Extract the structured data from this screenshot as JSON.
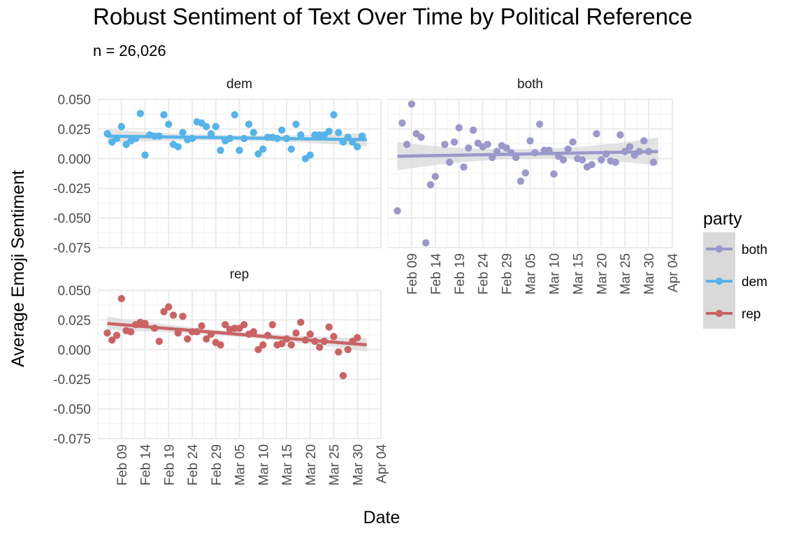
{
  "chart_data": {
    "type": "scatter",
    "title": "Robust Sentiment of Text Over Time by Political Reference",
    "subtitle": "n = 26,026",
    "xlabel": "Date",
    "ylabel": "Average Emoji Sentiment",
    "xlim": [
      "2024-02-04",
      "2024-04-04"
    ],
    "ylim": [
      -0.075,
      0.05
    ],
    "x_ticks": [
      "Feb 09",
      "Feb 14",
      "Feb 19",
      "Feb 24",
      "Feb 29",
      "Mar 05",
      "Mar 10",
      "Mar 15",
      "Mar 20",
      "Mar 25",
      "Mar 30",
      "Apr 04"
    ],
    "x_tick_dates": [
      "2024-02-09",
      "2024-02-14",
      "2024-02-19",
      "2024-02-24",
      "2024-02-29",
      "2024-03-05",
      "2024-03-10",
      "2024-03-15",
      "2024-03-20",
      "2024-03-25",
      "2024-03-30",
      "2024-04-04"
    ],
    "y_ticks": [
      "0.050",
      "0.025",
      "0.000",
      "-0.025",
      "-0.050",
      "-0.075"
    ],
    "y_tick_values": [
      0.05,
      0.025,
      0,
      -0.025,
      -0.05,
      -0.075
    ],
    "grid": true,
    "trend": "linear fit with confidence band",
    "legend": {
      "title": "party",
      "placement": "right",
      "entries": [
        "both",
        "dem",
        "rep"
      ]
    },
    "colors": {
      "both": "#9b98cb",
      "dem": "#56b4e9",
      "rep": "#c96464",
      "band": "#d9d9d9",
      "grid": "#ebebeb"
    },
    "panels": [
      {
        "name": "dem",
        "fit": {
          "start": [
            "2024-02-06",
            0.019
          ],
          "end": [
            "2024-04-01",
            0.016
          ]
        },
        "points": [
          [
            "2024-02-06",
            0.021
          ],
          [
            "2024-02-07",
            0.014
          ],
          [
            "2024-02-08",
            0.017
          ],
          [
            "2024-02-09",
            0.027
          ],
          [
            "2024-02-10",
            0.012
          ],
          [
            "2024-02-11",
            0.015
          ],
          [
            "2024-02-12",
            0.017
          ],
          [
            "2024-02-13",
            0.038
          ],
          [
            "2024-02-14",
            0.003
          ],
          [
            "2024-02-15",
            0.02
          ],
          [
            "2024-02-16",
            0.019
          ],
          [
            "2024-02-17",
            0.019
          ],
          [
            "2024-02-18",
            0.037
          ],
          [
            "2024-02-19",
            0.029
          ],
          [
            "2024-02-20",
            0.012
          ],
          [
            "2024-02-21",
            0.01
          ],
          [
            "2024-02-22",
            0.022
          ],
          [
            "2024-02-23",
            0.016
          ],
          [
            "2024-02-24",
            0.017
          ],
          [
            "2024-02-25",
            0.031
          ],
          [
            "2024-02-26",
            0.03
          ],
          [
            "2024-02-27",
            0.027
          ],
          [
            "2024-02-28",
            0.021
          ],
          [
            "2024-02-29",
            0.027
          ],
          [
            "2024-03-01",
            0.007
          ],
          [
            "2024-03-02",
            0.015
          ],
          [
            "2024-03-03",
            0.017
          ],
          [
            "2024-03-04",
            0.037
          ],
          [
            "2024-03-05",
            0.007
          ],
          [
            "2024-03-06",
            0.017
          ],
          [
            "2024-03-07",
            0.029
          ],
          [
            "2024-03-08",
            0.022
          ],
          [
            "2024-03-09",
            0.004
          ],
          [
            "2024-03-10",
            0.008
          ],
          [
            "2024-03-11",
            0.018
          ],
          [
            "2024-03-12",
            0.018
          ],
          [
            "2024-03-13",
            0.017
          ],
          [
            "2024-03-14",
            0.024
          ],
          [
            "2024-03-15",
            0.017
          ],
          [
            "2024-03-16",
            0.008
          ],
          [
            "2024-03-17",
            0.029
          ],
          [
            "2024-03-18",
            0.02
          ],
          [
            "2024-03-19",
            0.0
          ],
          [
            "2024-03-20",
            0.003
          ],
          [
            "2024-03-21",
            0.02
          ],
          [
            "2024-03-22",
            0.02
          ],
          [
            "2024-03-23",
            0.02
          ],
          [
            "2024-03-24",
            0.023
          ],
          [
            "2024-03-25",
            0.037
          ],
          [
            "2024-03-26",
            0.022
          ],
          [
            "2024-03-27",
            0.014
          ],
          [
            "2024-03-28",
            0.018
          ],
          [
            "2024-03-29",
            0.014
          ],
          [
            "2024-03-30",
            0.01
          ],
          [
            "2024-03-31",
            0.019
          ]
        ]
      },
      {
        "name": "both",
        "fit": {
          "start": [
            "2024-02-06",
            0.002
          ],
          "end": [
            "2024-04-01",
            0.006
          ]
        },
        "points": [
          [
            "2024-02-06",
            -0.044
          ],
          [
            "2024-02-07",
            0.03
          ],
          [
            "2024-02-08",
            0.012
          ],
          [
            "2024-02-09",
            0.046
          ],
          [
            "2024-02-10",
            0.021
          ],
          [
            "2024-02-11",
            0.018
          ],
          [
            "2024-02-12",
            -0.071
          ],
          [
            "2024-02-13",
            -0.022
          ],
          [
            "2024-02-14",
            -0.015
          ],
          [
            "2024-02-16",
            0.012
          ],
          [
            "2024-02-17",
            -0.003
          ],
          [
            "2024-02-18",
            0.014
          ],
          [
            "2024-02-19",
            0.026
          ],
          [
            "2024-02-20",
            -0.007
          ],
          [
            "2024-02-21",
            0.009
          ],
          [
            "2024-02-22",
            0.024
          ],
          [
            "2024-02-23",
            0.013
          ],
          [
            "2024-02-24",
            0.01
          ],
          [
            "2024-02-25",
            0.012
          ],
          [
            "2024-02-26",
            0.001
          ],
          [
            "2024-02-27",
            0.006
          ],
          [
            "2024-02-28",
            0.011
          ],
          [
            "2024-02-29",
            0.009
          ],
          [
            "2024-03-01",
            0.005
          ],
          [
            "2024-03-02",
            0.001
          ],
          [
            "2024-03-03",
            -0.019
          ],
          [
            "2024-03-04",
            -0.012
          ],
          [
            "2024-03-05",
            0.015
          ],
          [
            "2024-03-06",
            0.005
          ],
          [
            "2024-03-07",
            0.029
          ],
          [
            "2024-03-08",
            0.007
          ],
          [
            "2024-03-09",
            0.007
          ],
          [
            "2024-03-10",
            -0.013
          ],
          [
            "2024-03-11",
            0.002
          ],
          [
            "2024-03-12",
            -0.001
          ],
          [
            "2024-03-13",
            0.008
          ],
          [
            "2024-03-14",
            0.014
          ],
          [
            "2024-03-15",
            0.0
          ],
          [
            "2024-03-16",
            -0.001
          ],
          [
            "2024-03-17",
            -0.007
          ],
          [
            "2024-03-18",
            -0.005
          ],
          [
            "2024-03-19",
            0.021
          ],
          [
            "2024-03-20",
            -0.001
          ],
          [
            "2024-03-21",
            0.004
          ],
          [
            "2024-03-22",
            -0.002
          ],
          [
            "2024-03-23",
            -0.003
          ],
          [
            "2024-03-24",
            0.02
          ],
          [
            "2024-03-25",
            0.006
          ],
          [
            "2024-03-26",
            0.01
          ],
          [
            "2024-03-27",
            0.003
          ],
          [
            "2024-03-28",
            0.006
          ],
          [
            "2024-03-29",
            0.015
          ],
          [
            "2024-03-30",
            0.006
          ],
          [
            "2024-03-31",
            -0.003
          ]
        ]
      },
      {
        "name": "rep",
        "fit": {
          "start": [
            "2024-02-06",
            0.022
          ],
          "end": [
            "2024-04-01",
            0.004
          ]
        },
        "points": [
          [
            "2024-02-06",
            0.014
          ],
          [
            "2024-02-07",
            0.008
          ],
          [
            "2024-02-08",
            0.012
          ],
          [
            "2024-02-09",
            0.043
          ],
          [
            "2024-02-10",
            0.016
          ],
          [
            "2024-02-11",
            0.015
          ],
          [
            "2024-02-12",
            0.021
          ],
          [
            "2024-02-13",
            0.023
          ],
          [
            "2024-02-14",
            0.022
          ],
          [
            "2024-02-16",
            0.018
          ],
          [
            "2024-02-17",
            0.007
          ],
          [
            "2024-02-18",
            0.032
          ],
          [
            "2024-02-19",
            0.036
          ],
          [
            "2024-02-20",
            0.029
          ],
          [
            "2024-02-21",
            0.014
          ],
          [
            "2024-02-22",
            0.028
          ],
          [
            "2024-02-23",
            0.009
          ],
          [
            "2024-02-24",
            0.015
          ],
          [
            "2024-02-25",
            0.015
          ],
          [
            "2024-02-26",
            0.02
          ],
          [
            "2024-02-27",
            0.009
          ],
          [
            "2024-02-28",
            0.013
          ],
          [
            "2024-02-29",
            0.006
          ],
          [
            "2024-03-01",
            0.004
          ],
          [
            "2024-03-02",
            0.021
          ],
          [
            "2024-03-03",
            0.017
          ],
          [
            "2024-03-04",
            0.018
          ],
          [
            "2024-03-05",
            0.018
          ],
          [
            "2024-03-06",
            0.021
          ],
          [
            "2024-03-07",
            0.013
          ],
          [
            "2024-03-08",
            0.015
          ],
          [
            "2024-03-09",
            0.0
          ],
          [
            "2024-03-10",
            0.004
          ],
          [
            "2024-03-11",
            0.012
          ],
          [
            "2024-03-12",
            0.021
          ],
          [
            "2024-03-13",
            0.004
          ],
          [
            "2024-03-14",
            0.005
          ],
          [
            "2024-03-15",
            0.009
          ],
          [
            "2024-03-16",
            0.004
          ],
          [
            "2024-03-17",
            0.014
          ],
          [
            "2024-03-18",
            0.023
          ],
          [
            "2024-03-19",
            0.008
          ],
          [
            "2024-03-20",
            0.013
          ],
          [
            "2024-03-21",
            0.007
          ],
          [
            "2024-03-22",
            0.002
          ],
          [
            "2024-03-23",
            0.007
          ],
          [
            "2024-03-24",
            0.019
          ],
          [
            "2024-03-25",
            0.011
          ],
          [
            "2024-03-26",
            -0.002
          ],
          [
            "2024-03-27",
            -0.022
          ],
          [
            "2024-03-28",
            0.0
          ],
          [
            "2024-03-29",
            0.007
          ],
          [
            "2024-03-30",
            0.01
          ]
        ]
      }
    ]
  }
}
